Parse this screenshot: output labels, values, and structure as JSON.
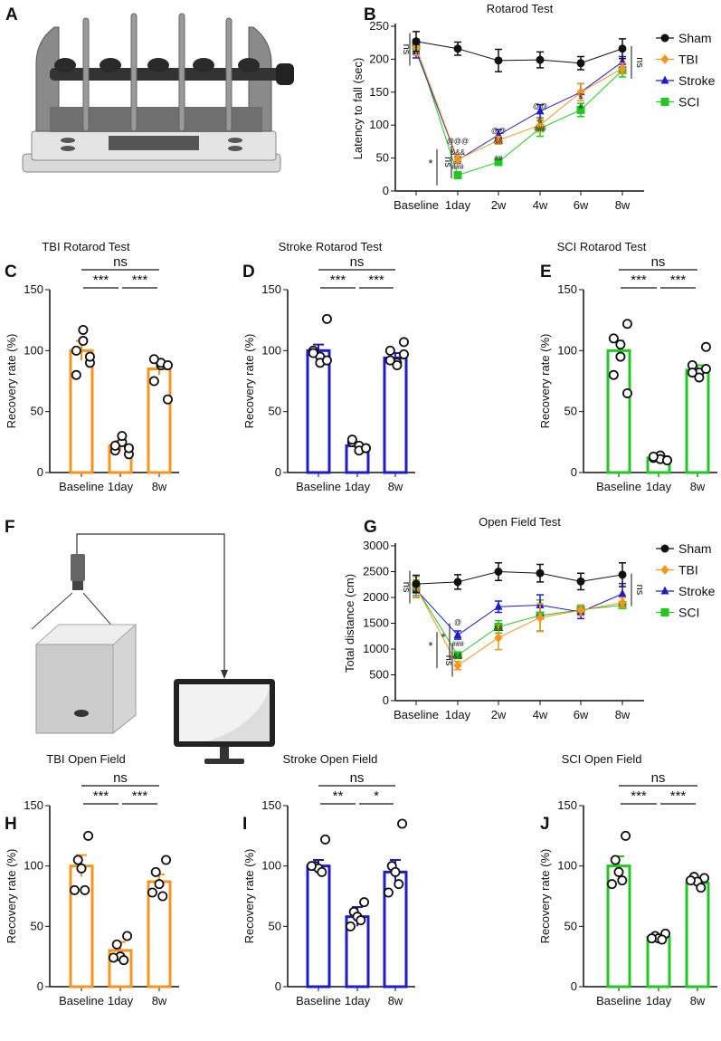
{
  "panel_labels": [
    "A",
    "B",
    "C",
    "D",
    "E",
    "F",
    "G",
    "H",
    "I",
    "J"
  ],
  "colors": {
    "Sham": "#111111",
    "TBI": "#f7941d",
    "Stroke": "#1c1cc8",
    "SCI": "#22c722"
  },
  "chart_data": [
    {
      "id": "B",
      "type": "line",
      "title": "Rotarod Test",
      "xlabel": "",
      "ylabel": "Latency to fall (sec)",
      "categories": [
        "Baseline",
        "1day",
        "2w",
        "4w",
        "6w",
        "8w"
      ],
      "ylim": [
        0,
        250
      ],
      "yticks": [
        0,
        50,
        100,
        150,
        200,
        250
      ],
      "legend": "right",
      "series": [
        {
          "name": "Sham",
          "marker": "circle",
          "values": [
            227,
            216,
            198,
            199,
            194,
            216
          ],
          "errors": [
            15,
            10,
            17,
            12,
            10,
            15
          ]
        },
        {
          "name": "TBI",
          "marker": "diamond",
          "values": [
            218,
            48,
            77,
            100,
            150,
            186
          ],
          "errors": [
            12,
            5,
            6,
            10,
            13,
            8
          ]
        },
        {
          "name": "Stroke",
          "marker": "triangle",
          "values": [
            212,
            47,
            85,
            121,
            150,
            196
          ],
          "errors": [
            10,
            5,
            8,
            10,
            13,
            8
          ]
        },
        {
          "name": "SCI",
          "marker": "square",
          "values": [
            220,
            24,
            44,
            95,
            123,
            183
          ],
          "errors": [
            8,
            3,
            3,
            12,
            10,
            10
          ]
        }
      ],
      "annotations": [
        {
          "text": "ns",
          "cat": 0,
          "value": 215,
          "side": "left",
          "vertical": true
        },
        {
          "text": "ns",
          "cat": 5,
          "value": 195,
          "side": "right",
          "vertical": true
        },
        {
          "text": "*",
          "cat": 1,
          "value": 36,
          "side": "left"
        },
        {
          "text": "ns",
          "cat": 1,
          "value": 44,
          "side": "left",
          "vertical": true
        },
        {
          "text": "@@@",
          "cat": 1,
          "value": 68
        },
        {
          "text": "&&&",
          "cat": 1,
          "value": 58
        },
        {
          "text": "###",
          "cat": 1,
          "value": 33
        },
        {
          "text": "@@",
          "cat": 2,
          "value": 88
        },
        {
          "text": "&&",
          "cat": 2,
          "value": 72
        },
        {
          "text": "##",
          "cat": 2,
          "value": 46
        },
        {
          "text": "@@",
          "cat": 3,
          "value": 125
        },
        {
          "text": "&",
          "cat": 3,
          "value": 104
        },
        {
          "text": "###",
          "cat": 3,
          "value": 91
        },
        {
          "text": "&",
          "cat": 4,
          "value": 140
        },
        {
          "text": "#",
          "cat": 4,
          "value": 124
        }
      ]
    },
    {
      "id": "C",
      "type": "bar",
      "title": "TBI Rotarod Test",
      "ylabel": "Recovery rate (%)",
      "series_color": "TBI",
      "categories": [
        "Baseline",
        "1day",
        "8w"
      ],
      "ylim": [
        0,
        150
      ],
      "yticks": [
        0,
        50,
        100,
        150
      ],
      "values": [
        100,
        22,
        85
      ],
      "errors": [
        8,
        4,
        5
      ],
      "points": [
        [
          90,
          100,
          108,
          117,
          80,
          95
        ],
        [
          15,
          18,
          25,
          30,
          22,
          20
        ],
        [
          60,
          75,
          88,
          90,
          93,
          88
        ]
      ],
      "significance": [
        {
          "label": "ns",
          "from": 0,
          "to": 2
        },
        {
          "label": "***",
          "from": 0,
          "to": 1
        },
        {
          "label": "***",
          "from": 1,
          "to": 2
        }
      ]
    },
    {
      "id": "D",
      "type": "bar",
      "title": "Stroke Rotarod Test",
      "ylabel": "Recovery rate (%)",
      "series_color": "Stroke",
      "categories": [
        "Baseline",
        "1day",
        "8w"
      ],
      "ylim": [
        0,
        150
      ],
      "yticks": [
        0,
        50,
        100,
        150
      ],
      "values": [
        100,
        22,
        94
      ],
      "errors": [
        5,
        2,
        4
      ],
      "points": [
        [
          126,
          100,
          95,
          90,
          98,
          92
        ],
        [
          20,
          25,
          22,
          18,
          27,
          20
        ],
        [
          107,
          100,
          90,
          88,
          92,
          97
        ]
      ],
      "significance": [
        {
          "label": "ns",
          "from": 0,
          "to": 2
        },
        {
          "label": "***",
          "from": 0,
          "to": 1
        },
        {
          "label": "***",
          "from": 1,
          "to": 2
        }
      ]
    },
    {
      "id": "E",
      "type": "bar",
      "title": "SCI Rotarod Test",
      "ylabel": "Recovery rate (%)",
      "series_color": "SCI",
      "categories": [
        "Baseline",
        "1day",
        "8w"
      ],
      "ylim": [
        0,
        150
      ],
      "yticks": [
        0,
        50,
        100,
        150
      ],
      "values": [
        100,
        12,
        84
      ],
      "errors": [
        8,
        1,
        4
      ],
      "points": [
        [
          122,
          110,
          105,
          95,
          80,
          65
        ],
        [
          10,
          12,
          14,
          11,
          13,
          10
        ],
        [
          103,
          88,
          82,
          78,
          82,
          85
        ]
      ],
      "significance": [
        {
          "label": "ns",
          "from": 0,
          "to": 2
        },
        {
          "label": "***",
          "from": 0,
          "to": 1
        },
        {
          "label": "***",
          "from": 1,
          "to": 2
        }
      ]
    },
    {
      "id": "G",
      "type": "line",
      "title": "Open Field Test",
      "xlabel": "",
      "ylabel": "Total distance (cm)",
      "categories": [
        "Baseline",
        "1day",
        "2w",
        "4w",
        "6w",
        "8w"
      ],
      "ylim": [
        0,
        3000
      ],
      "yticks": [
        0,
        500,
        1000,
        1500,
        2000,
        2500,
        3000
      ],
      "legend": "right",
      "series": [
        {
          "name": "Sham",
          "marker": "circle",
          "values": [
            2260,
            2300,
            2500,
            2470,
            2310,
            2440
          ],
          "errors": [
            170,
            140,
            170,
            170,
            160,
            230
          ]
        },
        {
          "name": "TBI",
          "marker": "diamond",
          "values": [
            2200,
            680,
            1220,
            1610,
            1750,
            1900
          ],
          "errors": [
            200,
            80,
            230,
            270,
            100,
            100
          ]
        },
        {
          "name": "Stroke",
          "marker": "triangle",
          "values": [
            2150,
            1270,
            1820,
            1850,
            1720,
            2070
          ],
          "errors": [
            150,
            80,
            110,
            200,
            130,
            200
          ]
        },
        {
          "name": "SCI",
          "marker": "square",
          "values": [
            2190,
            880,
            1430,
            1650,
            1760,
            1850
          ],
          "errors": [
            150,
            60,
            120,
            300,
            80,
            50
          ]
        }
      ],
      "annotations": [
        {
          "text": "ns",
          "cat": 0,
          "value": 2200,
          "side": "left",
          "vertical": true
        },
        {
          "text": "ns",
          "cat": 5,
          "value": 2150,
          "side": "right",
          "vertical": true
        },
        {
          "text": "*",
          "cat": 1,
          "value": 980,
          "side": "left"
        },
        {
          "text": "*",
          "cat": 1,
          "value": 1150,
          "side": "left"
        },
        {
          "text": "ns",
          "cat": 1,
          "value": 780,
          "side": "left",
          "vertical": true
        },
        {
          "text": "@",
          "cat": 1,
          "value": 1470
        },
        {
          "text": "###",
          "cat": 1,
          "value": 1050
        },
        {
          "text": "&&",
          "cat": 1,
          "value": 820
        },
        {
          "text": "&&",
          "cat": 2,
          "value": 1350
        }
      ]
    },
    {
      "id": "H",
      "type": "bar",
      "title": "TBI Open Field",
      "ylabel": "Recovery rate (%)",
      "series_color": "TBI",
      "categories": [
        "Baseline",
        "1day",
        "8w"
      ],
      "ylim": [
        0,
        150
      ],
      "yticks": [
        0,
        50,
        100,
        150
      ],
      "values": [
        100,
        30,
        87
      ],
      "errors": [
        9,
        7,
        6
      ],
      "points": [
        [
          125,
          105,
          98,
          80,
          80
        ],
        [
          42,
          35,
          25,
          22,
          24
        ],
        [
          105,
          95,
          85,
          75,
          78
        ]
      ],
      "significance": [
        {
          "label": "ns",
          "from": 0,
          "to": 2
        },
        {
          "label": "***",
          "from": 0,
          "to": 1
        },
        {
          "label": "***",
          "from": 1,
          "to": 2
        }
      ]
    },
    {
      "id": "I",
      "type": "bar",
      "title": "Stroke Open Field",
      "ylabel": "Recovery rate (%)",
      "series_color": "Stroke",
      "categories": [
        "Baseline",
        "1day",
        "8w"
      ],
      "ylim": [
        0,
        150
      ],
      "yticks": [
        0,
        50,
        100,
        150
      ],
      "values": [
        100,
        58,
        95
      ],
      "errors": [
        5,
        8,
        10
      ],
      "points": [
        [
          122,
          100,
          98,
          95,
          100
        ],
        [
          70,
          62,
          58,
          55,
          50
        ],
        [
          135,
          100,
          95,
          85,
          78
        ]
      ],
      "significance": [
        {
          "label": "ns",
          "from": 0,
          "to": 2
        },
        {
          "label": "**",
          "from": 0,
          "to": 1
        },
        {
          "label": "*",
          "from": 1,
          "to": 2
        }
      ]
    },
    {
      "id": "J",
      "type": "bar",
      "title": "SCI Open Field",
      "ylabel": "Recovery rate (%)",
      "series_color": "SCI",
      "categories": [
        "Baseline",
        "1day",
        "8w"
      ],
      "ylim": [
        0,
        150
      ],
      "yticks": [
        0,
        50,
        100,
        150
      ],
      "values": [
        100,
        41,
        86
      ],
      "errors": [
        8,
        2,
        3
      ],
      "points": [
        [
          125,
          105,
          95,
          88,
          85
        ],
        [
          44,
          42,
          40,
          39,
          40
        ],
        [
          90,
          91,
          87,
          82,
          88
        ]
      ],
      "significance": [
        {
          "label": "ns",
          "from": 0,
          "to": 2
        },
        {
          "label": "***",
          "from": 0,
          "to": 1
        },
        {
          "label": "***",
          "from": 1,
          "to": 2
        }
      ]
    }
  ]
}
